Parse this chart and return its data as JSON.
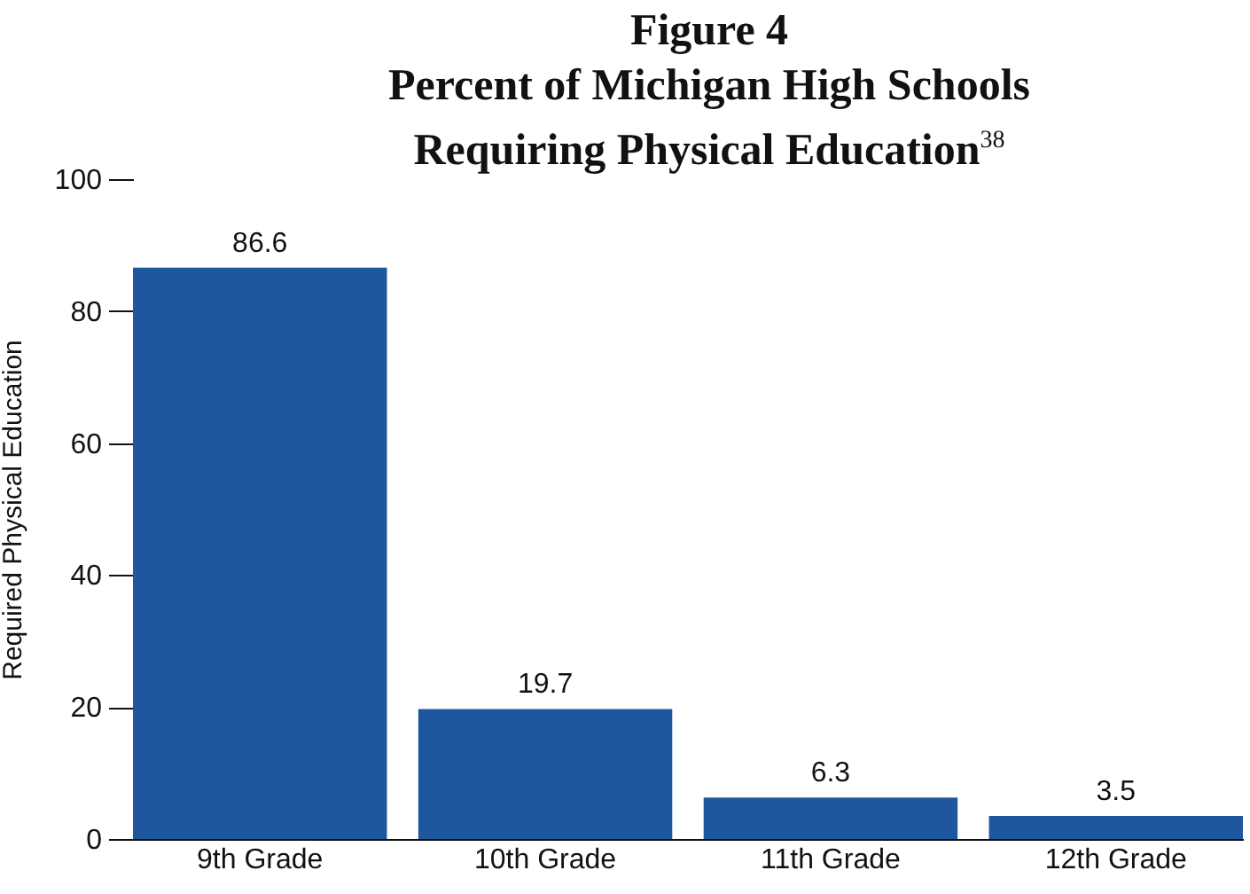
{
  "chart_data": {
    "type": "bar",
    "title": "Figure 4",
    "subtitle": "Percent of Michigan High Schools Requiring Physical Education$^{38}$",
    "ylabel": "Required Physical Education",
    "categories": [
      "9th Grade",
      "10th Grade",
      "11th Grade",
      "12th Grade"
    ],
    "values": [
      86.6,
      19.7,
      6.3,
      3.5
    ],
    "color": "#1f56a0",
    "data_labels": true,
    "ylim": [
      0,
      100
    ],
    "yticks": [
      0,
      20,
      40,
      60,
      80,
      100
    ],
    "grid": false
  }
}
